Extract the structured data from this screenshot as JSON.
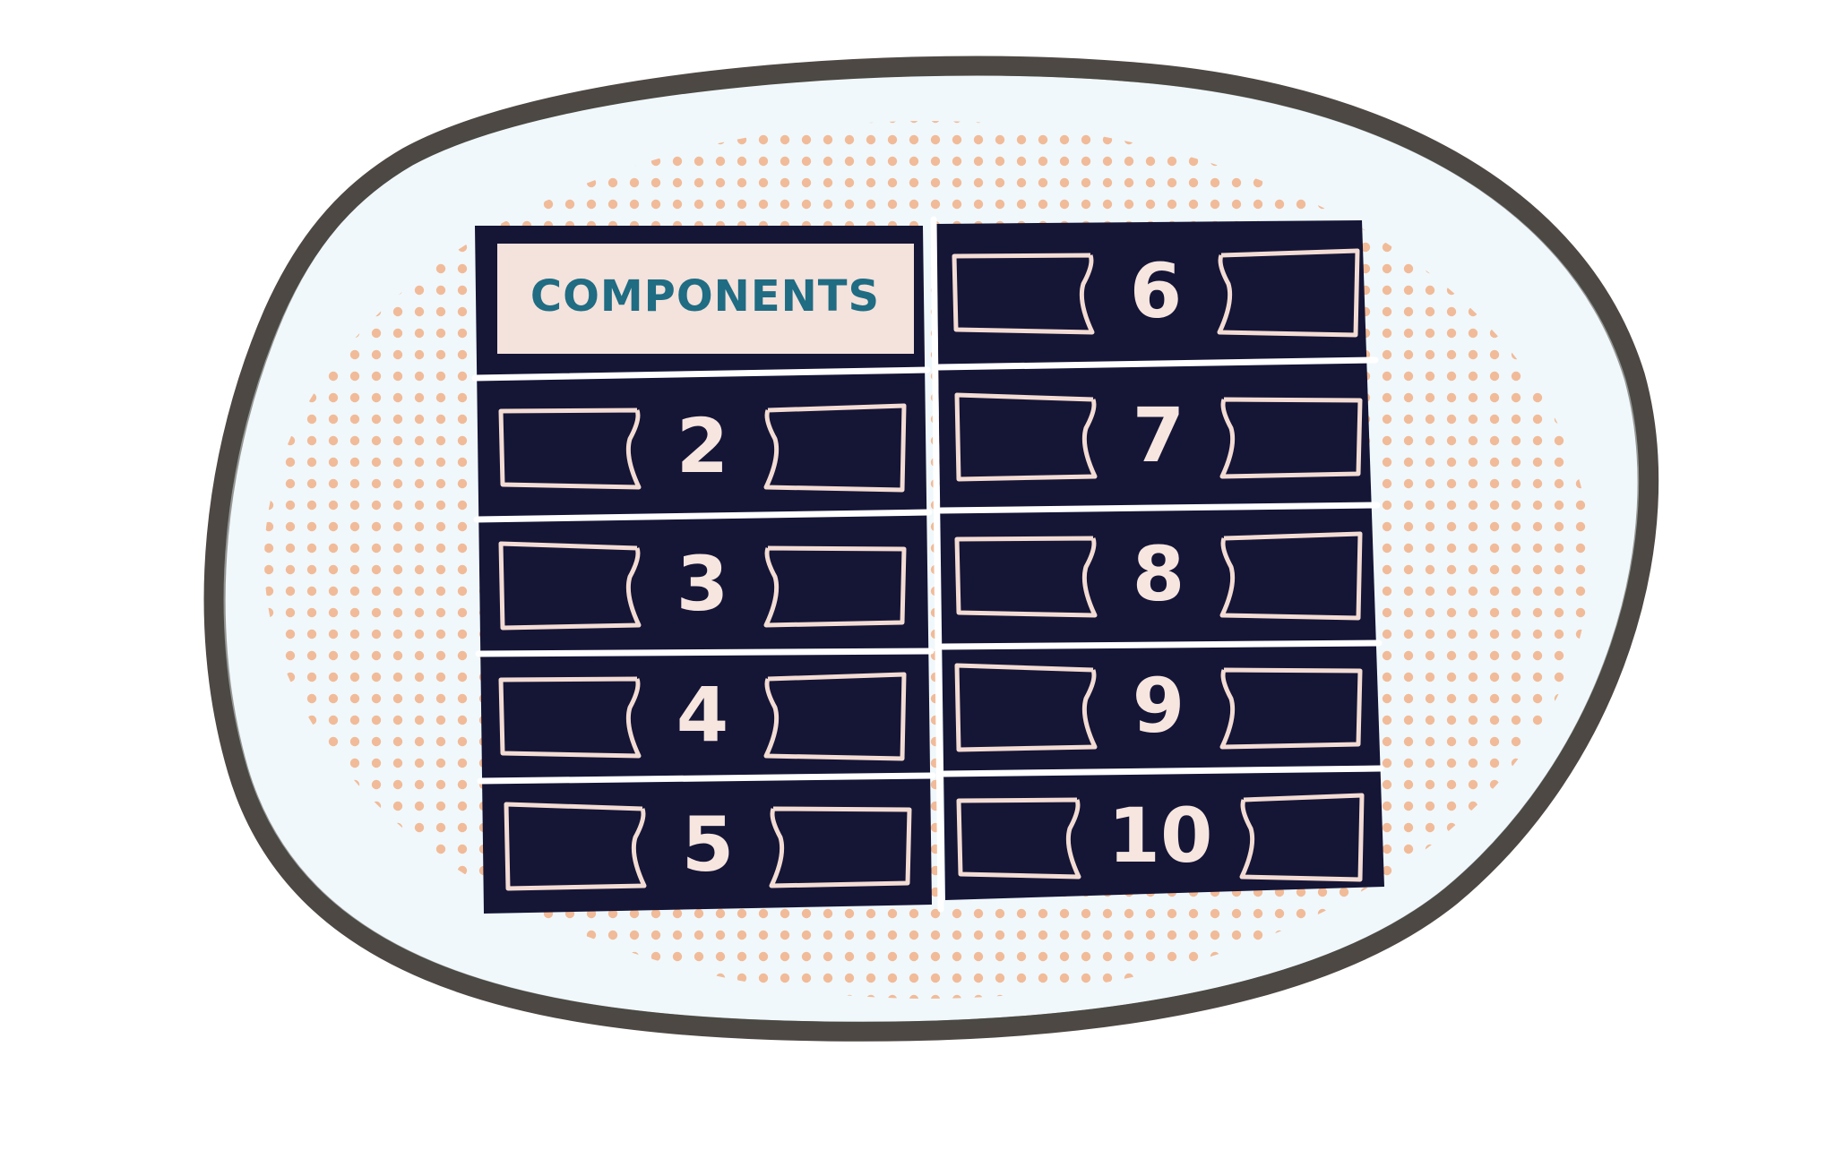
{
  "colors": {
    "background": "#ffffff",
    "blob_fill": "#f0f8fb",
    "blob_outline": "#4d4844",
    "dots": "#f1b48e",
    "cell_fill": "#151536",
    "cell_line": "#f3dcd4",
    "header_fill": "#f4e2dc",
    "header_text": "#1f6c83",
    "number_text": "#f7e6e0"
  },
  "header": {
    "label": "COMPONENTS"
  },
  "cells": [
    {
      "label": "2"
    },
    {
      "label": "3"
    },
    {
      "label": "4"
    },
    {
      "label": "5"
    },
    {
      "label": "6"
    },
    {
      "label": "7"
    },
    {
      "label": "8"
    },
    {
      "label": "9"
    },
    {
      "label": "10"
    }
  ]
}
